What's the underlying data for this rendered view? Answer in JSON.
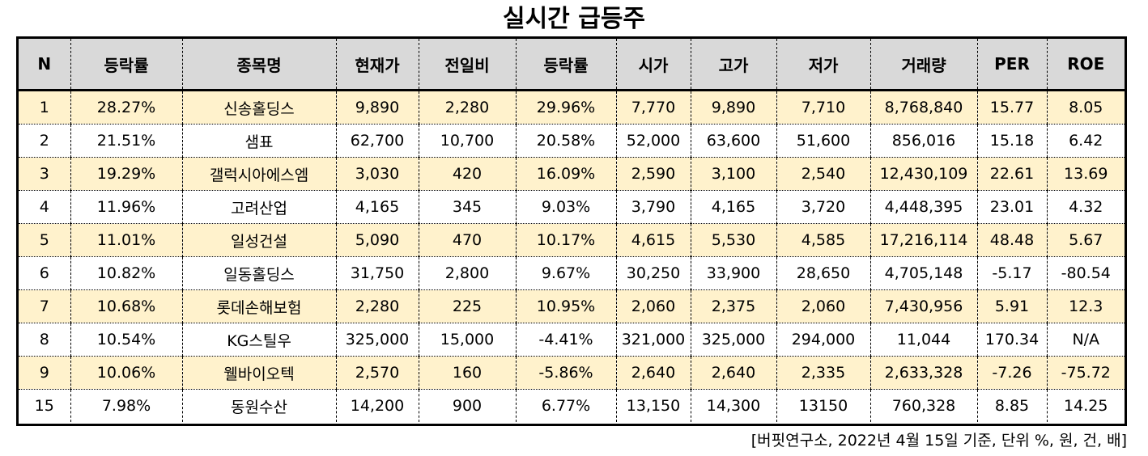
{
  "title": "실시간 급등주",
  "table": {
    "headers": [
      "N",
      "등락률",
      "종목명",
      "현재가",
      "전일비",
      "등락률",
      "시가",
      "고가",
      "저가",
      "거래량",
      "PER",
      "ROE"
    ],
    "rows": [
      [
        "1",
        "28.27%",
        "신송홀딩스",
        "9,890",
        "2,280",
        "29.96%",
        "7,770",
        "9,890",
        "7,710",
        "8,768,840",
        "15.77",
        "8.05"
      ],
      [
        "2",
        "21.51%",
        "샘표",
        "62,700",
        "10,700",
        "20.58%",
        "52,000",
        "63,600",
        "51,600",
        "856,016",
        "15.18",
        "6.42"
      ],
      [
        "3",
        "19.29%",
        "갤럭시아에스엠",
        "3,030",
        "420",
        "16.09%",
        "2,590",
        "3,100",
        "2,540",
        "12,430,109",
        "22.61",
        "13.69"
      ],
      [
        "4",
        "11.96%",
        "고려산업",
        "4,165",
        "345",
        "9.03%",
        "3,790",
        "4,165",
        "3,720",
        "4,448,395",
        "23.01",
        "4.32"
      ],
      [
        "5",
        "11.01%",
        "일성건설",
        "5,090",
        "470",
        "10.17%",
        "4,615",
        "5,530",
        "4,585",
        "17,216,114",
        "48.48",
        "5.67"
      ],
      [
        "6",
        "10.82%",
        "일동홀딩스",
        "31,750",
        "2,800",
        "9.67%",
        "30,250",
        "33,900",
        "28,650",
        "4,705,148",
        "-5.17",
        "-80.54"
      ],
      [
        "7",
        "10.68%",
        "롯데손해보험",
        "2,280",
        "225",
        "10.95%",
        "2,060",
        "2,375",
        "2,060",
        "7,430,956",
        "5.91",
        "12.3"
      ],
      [
        "8",
        "10.54%",
        "KG스틸우",
        "325,000",
        "15,000",
        "-4.41%",
        "321,000",
        "325,000",
        "294,000",
        "11,044",
        "170.34",
        "N/A"
      ],
      [
        "9",
        "10.06%",
        "웰바이오텍",
        "2,570",
        "160",
        "-5.86%",
        "2,640",
        "2,640",
        "2,335",
        "2,633,328",
        "-7.26",
        "-75.72"
      ],
      [
        "15",
        "7.98%",
        "동원수산",
        "14,200",
        "900",
        "6.77%",
        "13,150",
        "14,300",
        "13150",
        "760,328",
        "8.85",
        "14.25"
      ]
    ]
  },
  "source_note": "[버핏연구소, 2022년 4월 15일 기준, 단위 %, 원, 건, 배]",
  "colors": {
    "header_bg": "#d9d9d9",
    "odd_row_bg": "#fff2cc",
    "even_row_bg": "#ffffff"
  }
}
